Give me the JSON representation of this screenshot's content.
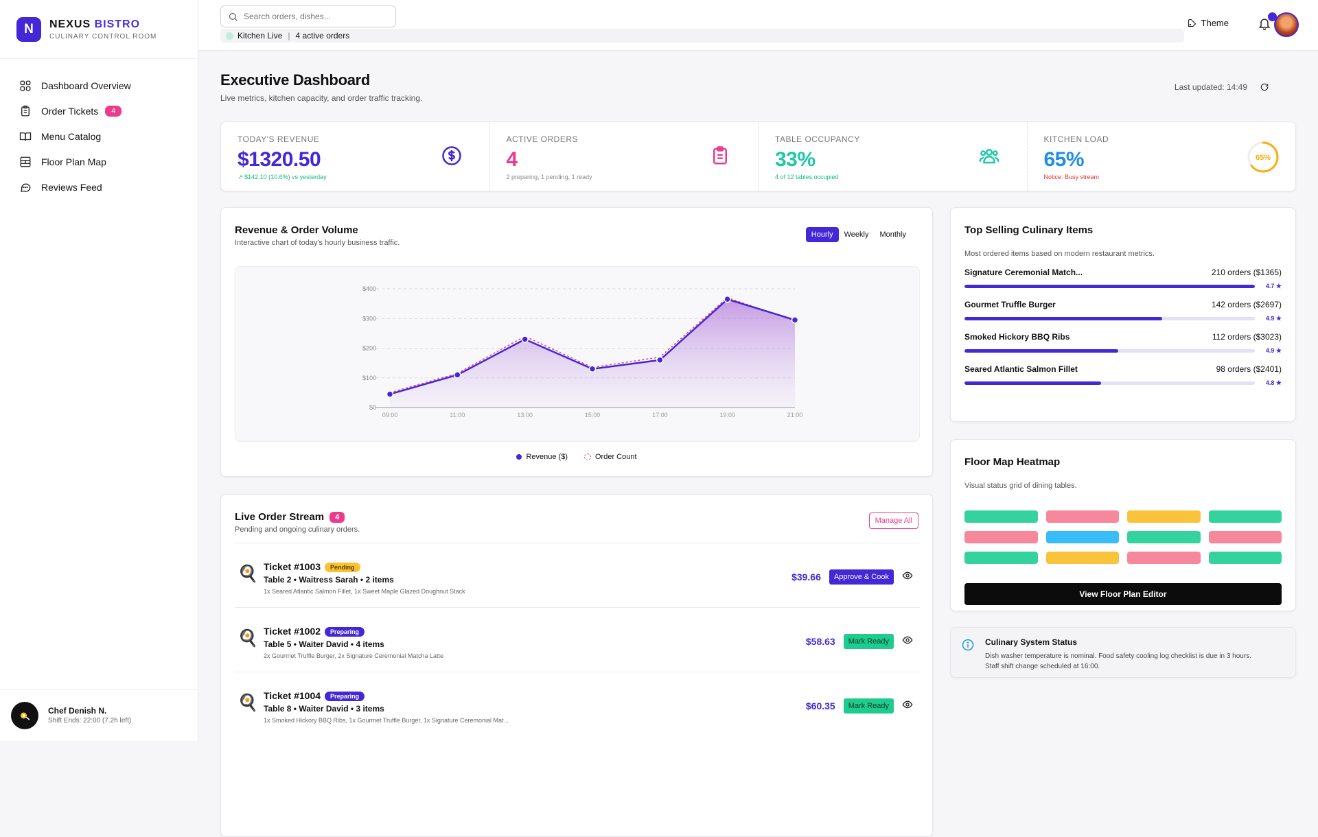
{
  "brand": {
    "initial": "N",
    "name_1": "NEXUS",
    "name_2": "BISTRO",
    "subtitle": "CULINARY CONTROL ROOM"
  },
  "nav": [
    {
      "label": "Dashboard Overview",
      "icon": "grid-icon"
    },
    {
      "label": "Order Tickets",
      "icon": "clipboard-icon",
      "badge": "4"
    },
    {
      "label": "Menu Catalog",
      "icon": "book-icon"
    },
    {
      "label": "Floor Plan Map",
      "icon": "layout-icon"
    },
    {
      "label": "Reviews Feed",
      "icon": "chat-icon"
    }
  ],
  "user": {
    "name": "Chef Denish N.",
    "shift": "Shift Ends: 22:00 (7.2h left)"
  },
  "topbar": {
    "search_placeholder": "Search orders, dishes...",
    "kitchen_status": "Kitchen Live",
    "active_orders": "4 active orders",
    "theme_label": "Theme"
  },
  "header": {
    "title": "Executive Dashboard",
    "subtitle": "Live metrics, kitchen capacity, and order traffic tracking.",
    "last_updated": "Last updated: 14:49"
  },
  "kpis": [
    {
      "label": "TODAY'S REVENUE",
      "value": "$1320.50",
      "note": "↗ $142.10 (10.6%) vs yesterday",
      "color": "#4427d6",
      "note_color": "#12b886",
      "icon": "dollar-icon"
    },
    {
      "label": "ACTIVE ORDERS",
      "value": "4",
      "note": "2 preparing, 1 pending, 1 ready",
      "color": "#ec3a8c",
      "note_color": "#888888",
      "icon": "clipboard-icon"
    },
    {
      "label": "TABLE OCCUPANCY",
      "value": "33%",
      "note": "4 of 12 tables occupied",
      "color": "#1cc9a4",
      "note_color": "#12b886",
      "icon": "users-icon"
    },
    {
      "label": "KITCHEN LOAD",
      "value": "65%",
      "note": "Notice: Busy stream",
      "color": "#1e8ee6",
      "note_color": "#e03131",
      "icon": "gauge",
      "gauge_value": 0.65,
      "gauge_label": "65%"
    }
  ],
  "chart": {
    "title": "Revenue & Order Volume",
    "subtitle": "Interactive chart of today's hourly business traffic.",
    "tabs": [
      "Hourly",
      "Weekly",
      "Monthly"
    ],
    "active_tab": "Hourly"
  },
  "chart_data": {
    "type": "area",
    "x": [
      "09:00",
      "11:00",
      "13:00",
      "15:00",
      "17:00",
      "19:00",
      "21:00"
    ],
    "yticks": [
      "$0",
      "$100",
      "$200",
      "$300",
      "$400"
    ],
    "ylim": [
      0,
      400
    ],
    "series": [
      {
        "name": "Revenue ($)",
        "values": [
          45,
          110,
          230,
          130,
          160,
          365,
          295
        ],
        "color": "#4427d6"
      },
      {
        "name": "Order Count",
        "values": [
          50,
          115,
          240,
          135,
          170,
          370,
          292
        ],
        "color": "#ec3a8c"
      }
    ],
    "legend": "bottom",
    "grid": true
  },
  "orders": {
    "title": "Live Order Stream",
    "count": "4",
    "subtitle": "Pending and ongoing culinary orders.",
    "manage_label": "Manage All",
    "tickets": [
      {
        "id": "Ticket #1003",
        "status": "Pending",
        "meta": "Table 2 • Waitress Sarah • 2 items",
        "items": "1x Seared Atlantic Salmon Fillet, 1x Sweet Maple Glazed Doughnut Stack",
        "price": "$39.66",
        "action": "Approve & Cook"
      },
      {
        "id": "Ticket #1002",
        "status": "Preparing",
        "meta": "Table 5 • Waiter David • 4 items",
        "items": "2x Gourmet Truffle Burger, 2x Signature Ceremonial Matcha Latte",
        "price": "$58.63",
        "action": "Mark Ready"
      },
      {
        "id": "Ticket #1004",
        "status": "Preparing",
        "meta": "Table 8 • Waiter David • 3 items",
        "items": "1x Smoked Hickory BBQ Ribs, 1x Gourmet Truffle Burger, 1x Signature Ceremonial Mat...",
        "price": "$60.35",
        "action": "Mark Ready"
      }
    ]
  },
  "top_items": {
    "title": "Top Selling Culinary Items",
    "subtitle": "Most ordered items based on modern restaurant metrics.",
    "items": [
      {
        "name": "Signature Ceremonial Match...",
        "stats": "210 orders ($1365)",
        "rating": "4.7 ★",
        "share": 1.0
      },
      {
        "name": "Gourmet Truffle Burger",
        "stats": "142 orders ($2697)",
        "rating": "4.9 ★",
        "share": 0.68
      },
      {
        "name": "Smoked Hickory BBQ Ribs",
        "stats": "112 orders ($3023)",
        "rating": "4.9 ★",
        "share": 0.53
      },
      {
        "name": "Seared Atlantic Salmon Fillet",
        "stats": "98 orders ($2401)",
        "rating": "4.8 ★",
        "share": 0.47
      }
    ]
  },
  "floor_map": {
    "title": "Floor Map Heatmap",
    "subtitle": "Visual status grid of dining tables.",
    "tables": [
      "#34d39e",
      "#f7879a",
      "#f9c43c",
      "#34d39e",
      "#f7879a",
      "#38bdf8",
      "#34d39e",
      "#f7879a",
      "#34d39e",
      "#f9c43c",
      "#f7879a",
      "#34d39e"
    ],
    "button_label": "View Floor Plan Editor"
  },
  "system_status": {
    "title": "Culinary System Status",
    "text_1": "Dish washer temperature is nominal. Food safety cooling log checklist is due in 3 hours.",
    "text_2": "Staff shift change scheduled at 16:00."
  }
}
